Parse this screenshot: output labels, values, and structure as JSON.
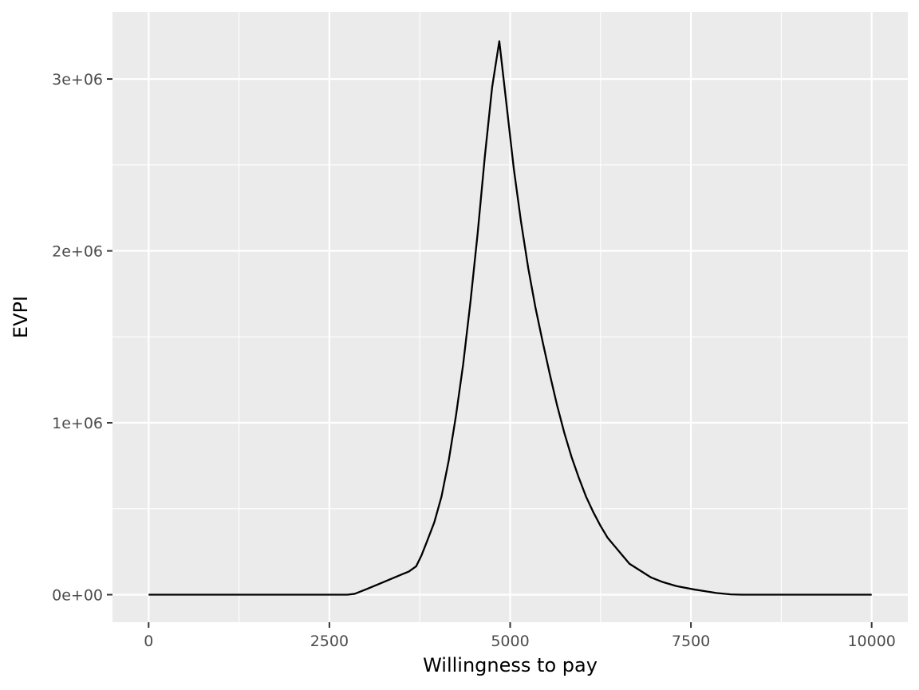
{
  "chart_data": {
    "type": "line",
    "title": "",
    "xlabel": "Willingness to pay",
    "ylabel": "EVPI",
    "xlim": [
      -500,
      10500
    ],
    "ylim": [
      -160000,
      3390000
    ],
    "x_ticks": [
      0,
      2500,
      5000,
      7500,
      10000
    ],
    "x_tick_labels": [
      "0",
      "2500",
      "5000",
      "7500",
      "10000"
    ],
    "x_minor_ticks": [
      1250,
      3750,
      6250,
      8750
    ],
    "y_ticks": [
      0,
      1000000,
      2000000,
      3000000
    ],
    "y_tick_labels": [
      "0e+00",
      "1e+06",
      "2e+06",
      "3e+06"
    ],
    "y_minor_ticks": [
      500000,
      1500000,
      2500000
    ],
    "grid": true,
    "colors": {
      "panel": "#ebebeb",
      "grid": "#ffffff",
      "line": "#000000"
    },
    "series": [
      {
        "x": [
          0,
          500,
          1000,
          1500,
          2000,
          2500,
          2750,
          2850,
          3000,
          3200,
          3400,
          3600,
          3700,
          3775,
          3850,
          3950,
          4050,
          4150,
          4250,
          4350,
          4450,
          4550,
          4650,
          4750,
          4850,
          4950,
          5050,
          5150,
          5250,
          5350,
          5450,
          5550,
          5650,
          5750,
          5850,
          5950,
          6050,
          6150,
          6250,
          6350,
          6450,
          6550,
          6650,
          6800,
          6950,
          7100,
          7300,
          7550,
          7850,
          8050,
          8200,
          8500,
          9000,
          9500,
          10000
        ],
        "y": [
          0,
          0,
          0,
          0,
          0,
          0,
          0,
          5000,
          30000,
          65000,
          100000,
          135000,
          165000,
          230000,
          310000,
          420000,
          570000,
          780000,
          1040000,
          1340000,
          1700000,
          2100000,
          2550000,
          2950000,
          3220000,
          2850000,
          2480000,
          2170000,
          1900000,
          1670000,
          1470000,
          1280000,
          1100000,
          940000,
          800000,
          680000,
          570000,
          480000,
          400000,
          330000,
          280000,
          230000,
          180000,
          140000,
          100000,
          75000,
          50000,
          30000,
          10000,
          2000,
          0,
          0,
          0,
          0,
          0
        ]
      }
    ]
  }
}
